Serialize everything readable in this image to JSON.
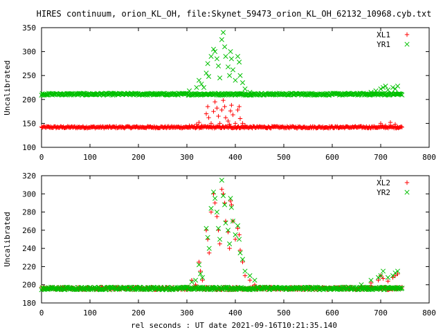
{
  "title": "HIRES continuum, orion_KL_OH, file:Skynet_59473_orion_KL_OH_62132_10968.cyb.txt",
  "xlabel": "rel seconds : UT date 2021-09-16T10:21:35.140",
  "colors": {
    "red": "#ff0000",
    "green": "#00c000"
  },
  "chart_data": [
    {
      "type": "scatter",
      "ylabel": "Uncalibrated",
      "xlim": [
        0,
        800
      ],
      "ylim": [
        100,
        350
      ],
      "xticks": [
        0,
        100,
        200,
        300,
        400,
        500,
        600,
        700,
        800
      ],
      "yticks": [
        100,
        150,
        200,
        250,
        300,
        350
      ],
      "legend_position": "top-right",
      "baseline_note": "dense continuous points from x≈0 to x≈745",
      "series": [
        {
          "name": "XL1",
          "marker": "+",
          "color": "#ff0000",
          "baseline": {
            "x_range": [
              0,
              745
            ],
            "y": 142,
            "noise": 2
          },
          "points": [
            [
              305,
              145
            ],
            [
              320,
              148
            ],
            [
              325,
              152
            ],
            [
              330,
              145
            ],
            [
              340,
              170
            ],
            [
              343,
              185
            ],
            [
              345,
              162
            ],
            [
              350,
              150
            ],
            [
              355,
              175
            ],
            [
              358,
              195
            ],
            [
              362,
              182
            ],
            [
              365,
              165
            ],
            [
              368,
              150
            ],
            [
              372,
              178
            ],
            [
              375,
              198
            ],
            [
              378,
              185
            ],
            [
              380,
              162
            ],
            [
              385,
              155
            ],
            [
              388,
              148
            ],
            [
              390,
              176
            ],
            [
              392,
              188
            ],
            [
              395,
              168
            ],
            [
              400,
              150
            ],
            [
              405,
              178
            ],
            [
              408,
              185
            ],
            [
              410,
              160
            ],
            [
              415,
              150
            ],
            [
              420,
              146
            ],
            [
              700,
              150
            ],
            [
              710,
              145
            ],
            [
              720,
              152
            ],
            [
              730,
              148
            ],
            [
              735,
              142
            ]
          ]
        },
        {
          "name": "YR1",
          "marker": "x",
          "color": "#00c000",
          "baseline": {
            "x_range": [
              0,
              745
            ],
            "y": 211,
            "noise": 2
          },
          "points": [
            [
              305,
              218
            ],
            [
              320,
              225
            ],
            [
              325,
              240
            ],
            [
              330,
              232
            ],
            [
              335,
              225
            ],
            [
              340,
              255
            ],
            [
              343,
              275
            ],
            [
              345,
              248
            ],
            [
              350,
              290
            ],
            [
              355,
              305
            ],
            [
              358,
              300
            ],
            [
              362,
              285
            ],
            [
              365,
              270
            ],
            [
              368,
              245
            ],
            [
              372,
              325
            ],
            [
              375,
              340
            ],
            [
              378,
              310
            ],
            [
              380,
              290
            ],
            [
              385,
              268
            ],
            [
              388,
              250
            ],
            [
              390,
              300
            ],
            [
              392,
              285
            ],
            [
              395,
              262
            ],
            [
              400,
              240
            ],
            [
              405,
              290
            ],
            [
              408,
              278
            ],
            [
              410,
              250
            ],
            [
              415,
              235
            ],
            [
              420,
              222
            ],
            [
              430,
              215
            ],
            [
              680,
              215
            ],
            [
              690,
              218
            ],
            [
              700,
              222
            ],
            [
              705,
              225
            ],
            [
              710,
              228
            ],
            [
              715,
              220
            ],
            [
              725,
              225
            ],
            [
              730,
              222
            ],
            [
              735,
              228
            ]
          ]
        }
      ]
    },
    {
      "type": "scatter",
      "ylabel": "Uncalibrated",
      "xlim": [
        0,
        800
      ],
      "ylim": [
        180,
        320
      ],
      "xticks": [
        0,
        100,
        200,
        300,
        400,
        500,
        600,
        700,
        800
      ],
      "yticks": [
        180,
        200,
        220,
        240,
        260,
        280,
        300,
        320
      ],
      "legend_position": "top-right",
      "series": [
        {
          "name": "XL2",
          "marker": "+",
          "color": "#ff0000",
          "baseline": {
            "x_range": [
              0,
              745
            ],
            "y": 196,
            "noise": 1.5
          },
          "points": [
            [
              310,
              205
            ],
            [
              318,
              200
            ],
            [
              325,
              225
            ],
            [
              328,
              215
            ],
            [
              332,
              205
            ],
            [
              340,
              260
            ],
            [
              343,
              250
            ],
            [
              346,
              235
            ],
            [
              350,
              280
            ],
            [
              355,
              300
            ],
            [
              358,
              290
            ],
            [
              362,
              275
            ],
            [
              365,
              260
            ],
            [
              368,
              245
            ],
            [
              372,
              305
            ],
            [
              375,
              300
            ],
            [
              378,
              290
            ],
            [
              380,
              270
            ],
            [
              385,
              258
            ],
            [
              388,
              240
            ],
            [
              390,
              292
            ],
            [
              392,
              288
            ],
            [
              395,
              270
            ],
            [
              400,
              250
            ],
            [
              405,
              262
            ],
            [
              408,
              255
            ],
            [
              410,
              238
            ],
            [
              415,
              225
            ],
            [
              420,
              210
            ],
            [
              430,
              205
            ],
            [
              440,
              200
            ],
            [
              680,
              202
            ],
            [
              695,
              205
            ],
            [
              700,
              210
            ],
            [
              705,
              207
            ],
            [
              715,
              204
            ],
            [
              725,
              208
            ],
            [
              730,
              210
            ],
            [
              735,
              212
            ]
          ]
        },
        {
          "name": "YR2",
          "marker": "x",
          "color": "#00c000",
          "baseline": {
            "x_range": [
              0,
              745
            ],
            "y": 196,
            "noise": 1.5
          },
          "points": [
            [
              310,
              203
            ],
            [
              318,
              205
            ],
            [
              325,
              222
            ],
            [
              328,
              212
            ],
            [
              332,
              208
            ],
            [
              340,
              262
            ],
            [
              343,
              252
            ],
            [
              346,
              240
            ],
            [
              350,
              284
            ],
            [
              355,
              302
            ],
            [
              358,
              295
            ],
            [
              362,
              280
            ],
            [
              365,
              262
            ],
            [
              368,
              250
            ],
            [
              372,
              315
            ],
            [
              375,
              298
            ],
            [
              378,
              288
            ],
            [
              380,
              268
            ],
            [
              385,
              260
            ],
            [
              388,
              245
            ],
            [
              390,
              295
            ],
            [
              392,
              285
            ],
            [
              395,
              270
            ],
            [
              400,
              255
            ],
            [
              405,
              265
            ],
            [
              408,
              250
            ],
            [
              410,
              235
            ],
            [
              415,
              228
            ],
            [
              420,
              215
            ],
            [
              430,
              210
            ],
            [
              440,
              205
            ],
            [
              660,
              200
            ],
            [
              680,
              205
            ],
            [
              695,
              208
            ],
            [
              700,
              210
            ],
            [
              705,
              215
            ],
            [
              715,
              208
            ],
            [
              725,
              210
            ],
            [
              730,
              213
            ],
            [
              735,
              215
            ]
          ]
        }
      ]
    }
  ]
}
